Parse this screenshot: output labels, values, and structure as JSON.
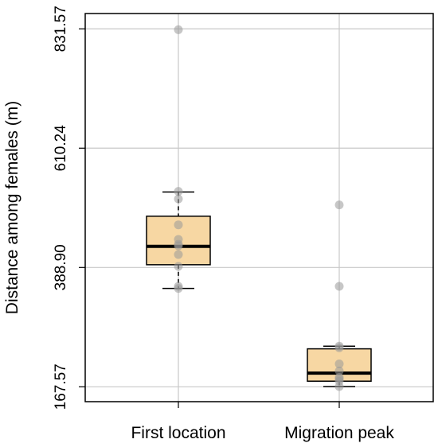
{
  "chart_data": {
    "type": "boxplot",
    "title": "",
    "xlabel": "",
    "ylabel": "Distance among females (m)",
    "categories": [
      "First location",
      "Migration peak"
    ],
    "yticks": [
      "167.57",
      "388.90",
      "610.24",
      "831.57"
    ],
    "ylim": [
      140,
      860
    ],
    "grid": true,
    "box_color": "#f7d7a3",
    "point_color": "#999999",
    "grid_color": "#c8c8c8",
    "boxes": [
      {
        "category": "First location",
        "whisker_low": 350,
        "q1": 394,
        "median": 428,
        "q3": 484,
        "whisker_high": 529,
        "points": [
          830,
          530,
          516,
          468,
          441,
          432,
          429,
          413,
          391,
          354,
          350
        ]
      },
      {
        "category": "Migration peak",
        "whisker_low": 168,
        "q1": 178,
        "median": 193,
        "q3": 238,
        "whisker_high": 243,
        "points": [
          505,
          354,
          243,
          240,
          210,
          197,
          185,
          182,
          178,
          168
        ]
      }
    ]
  }
}
